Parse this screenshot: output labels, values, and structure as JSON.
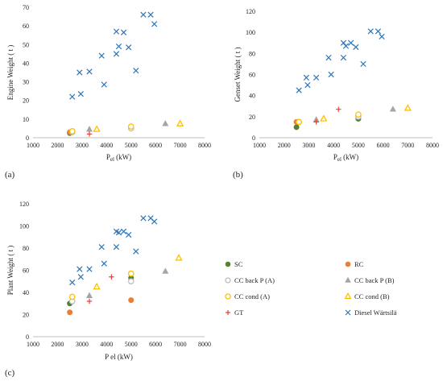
{
  "colors": {
    "SC": "#548235",
    "RC": "#ED7D31",
    "CC back P (A)": "#D9D9D9",
    "CC back P (B)": "#A5A5A5",
    "CC cond (A)": "#FFC000",
    "CC cond (B)": "#FFC000",
    "GT": "#E8423A",
    "Diesel Wärtsilä": "#2E75B6"
  },
  "legend": {
    "entries": [
      {
        "name": "SC",
        "marker": "circle"
      },
      {
        "name": "RC",
        "marker": "circle"
      },
      {
        "name": "CC back P (A)",
        "marker": "circle-open"
      },
      {
        "name": "CC back P (B)",
        "marker": "triangle"
      },
      {
        "name": "CC cond (A)",
        "marker": "circle-open"
      },
      {
        "name": "CC cond (B)",
        "marker": "triangle-open"
      },
      {
        "name": "GT",
        "marker": "plus"
      },
      {
        "name": "Diesel Wärtsilä",
        "marker": "x"
      }
    ]
  },
  "chart_data": [
    {
      "type": "scatter",
      "panel_label": "(a)",
      "xlabel": "P",
      "xlabel_sub": "el",
      "xlabel_unit": " (kW)",
      "ylabel": "Engine Weight ( t )",
      "xlim": [
        1000,
        8000
      ],
      "ylim": [
        0,
        70
      ],
      "xticks": [
        1000,
        2000,
        3000,
        4000,
        5000,
        6000,
        7000,
        8000
      ],
      "yticks": [
        0,
        10,
        20,
        30,
        40,
        50,
        60,
        70
      ],
      "grid": false,
      "series": [
        {
          "name": "SC",
          "points": [
            [
              2500,
              2.5
            ],
            [
              5000,
              5
            ]
          ]
        },
        {
          "name": "RC",
          "points": [
            [
              2500,
              3
            ],
            [
              5000,
              5.5
            ]
          ]
        },
        {
          "name": "CC back P (A)",
          "points": [
            [
              2600,
              3
            ],
            [
              5000,
              5
            ]
          ]
        },
        {
          "name": "CC back P (B)",
          "points": [
            [
              3300,
              4.5
            ],
            [
              6400,
              7.5
            ]
          ]
        },
        {
          "name": "CC cond (A)",
          "points": [
            [
              2600,
              3.5
            ],
            [
              5000,
              6
            ]
          ]
        },
        {
          "name": "CC cond (B)",
          "points": [
            [
              3600,
              4.5
            ],
            [
              7000,
              7.5
            ]
          ]
        },
        {
          "name": "GT",
          "points": [
            [
              3300,
              2
            ]
          ]
        },
        {
          "name": "Diesel Wärtsilä",
          "points": [
            [
              2600,
              22
            ],
            [
              2900,
              35
            ],
            [
              2950,
              23.5
            ],
            [
              3300,
              35.5
            ],
            [
              3800,
              44
            ],
            [
              3900,
              28.5
            ],
            [
              4400,
              57
            ],
            [
              4400,
              45
            ],
            [
              4500,
              49
            ],
            [
              4700,
              56.5
            ],
            [
              4900,
              48.5
            ],
            [
              5200,
              36
            ],
            [
              5500,
              66
            ],
            [
              5800,
              66
            ],
            [
              5950,
              61
            ]
          ]
        }
      ]
    },
    {
      "type": "scatter",
      "panel_label": "(b)",
      "xlabel": "P",
      "xlabel_sub": "el",
      "xlabel_unit": " (kW)",
      "ylabel": "Genset Weight ( t )",
      "xlim": [
        1000,
        8000
      ],
      "ylim": [
        0,
        120
      ],
      "xticks": [
        1000,
        2000,
        3000,
        4000,
        5000,
        6000,
        7000,
        8000
      ],
      "yticks": [
        0,
        20,
        40,
        60,
        80,
        100,
        120
      ],
      "grid": false,
      "series": [
        {
          "name": "SC",
          "points": [
            [
              2500,
              10
            ],
            [
              5000,
              18
            ]
          ]
        },
        {
          "name": "RC",
          "points": [
            [
              2500,
              15
            ],
            [
              5000,
              21
            ]
          ]
        },
        {
          "name": "CC back P (A)",
          "points": [
            [
              2600,
              15
            ],
            [
              5000,
              20
            ]
          ]
        },
        {
          "name": "CC back P (B)",
          "points": [
            [
              3300,
              17
            ],
            [
              6400,
              27
            ]
          ]
        },
        {
          "name": "CC cond (A)",
          "points": [
            [
              2600,
              15
            ],
            [
              5000,
              22
            ]
          ]
        },
        {
          "name": "CC cond (B)",
          "points": [
            [
              3600,
              18
            ],
            [
              7000,
              28
            ]
          ]
        },
        {
          "name": "GT",
          "points": [
            [
              3300,
              15
            ],
            [
              4200,
              27
            ]
          ]
        },
        {
          "name": "Diesel Wärtsilä",
          "points": [
            [
              2600,
              45
            ],
            [
              2900,
              57
            ],
            [
              2950,
              50
            ],
            [
              3300,
              57
            ],
            [
              3800,
              76
            ],
            [
              3900,
              60
            ],
            [
              4400,
              90
            ],
            [
              4400,
              76
            ],
            [
              4500,
              87
            ],
            [
              4700,
              90
            ],
            [
              4900,
              86
            ],
            [
              5200,
              70
            ],
            [
              5500,
              101
            ],
            [
              5800,
              101
            ],
            [
              5950,
              96
            ]
          ]
        }
      ]
    },
    {
      "type": "scatter",
      "panel_label": "(c)",
      "xlabel": "P el (kW)",
      "ylabel": "Plant Weight ( t )",
      "xlim": [
        1000,
        8000
      ],
      "ylim": [
        0,
        120
      ],
      "xticks": [
        1000,
        2000,
        3000,
        4000,
        5000,
        6000,
        7000,
        8000
      ],
      "yticks": [
        0,
        20,
        40,
        60,
        80,
        100,
        120
      ],
      "grid": false,
      "series": [
        {
          "name": "SC",
          "points": [
            [
              2500,
              30
            ],
            [
              5000,
              53
            ]
          ]
        },
        {
          "name": "RC",
          "points": [
            [
              2500,
              22
            ],
            [
              5000,
              33
            ]
          ]
        },
        {
          "name": "CC back P (A)",
          "points": [
            [
              2600,
              32
            ],
            [
              5000,
              50
            ]
          ]
        },
        {
          "name": "CC back P (B)",
          "points": [
            [
              3300,
              37
            ],
            [
              6400,
              59
            ]
          ]
        },
        {
          "name": "CC cond (A)",
          "points": [
            [
              2600,
              36
            ],
            [
              5000,
              57
            ]
          ]
        },
        {
          "name": "CC cond (B)",
          "points": [
            [
              3600,
              45
            ],
            [
              6950,
              71
            ]
          ]
        },
        {
          "name": "GT",
          "points": [
            [
              3300,
              32
            ],
            [
              4200,
              54
            ]
          ]
        },
        {
          "name": "Diesel Wärtsilä",
          "points": [
            [
              2600,
              49
            ],
            [
              2900,
              61
            ],
            [
              2950,
              54
            ],
            [
              3300,
              61
            ],
            [
              3800,
              81
            ],
            [
              3900,
              66
            ],
            [
              4400,
              95
            ],
            [
              4400,
              81
            ],
            [
              4500,
              94
            ],
            [
              4700,
              95
            ],
            [
              4900,
              92
            ],
            [
              5200,
              77
            ],
            [
              5500,
              107
            ],
            [
              5800,
              107
            ],
            [
              5950,
              104
            ]
          ]
        }
      ]
    }
  ]
}
